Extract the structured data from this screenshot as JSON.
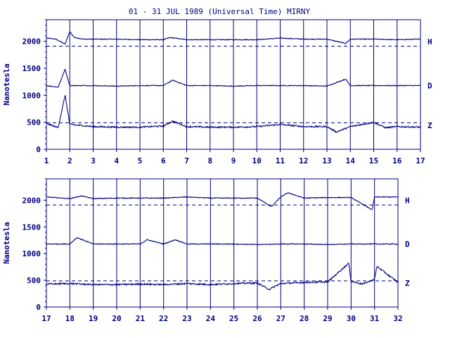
{
  "chart_data": {
    "title": "01 - 31 JUL 1989 (Universal Time) MIRNY",
    "ylabel": "Nanotesla",
    "colors": {
      "line": "#000080",
      "axis": "#000080",
      "text": "#000080"
    },
    "panels": [
      {
        "type": "line",
        "xlim": [
          1,
          17
        ],
        "ylim": [
          0,
          2400
        ],
        "x_ticks": [
          "1",
          "2",
          "3",
          "4",
          "5",
          "6",
          "7",
          "8",
          "9",
          "10",
          "11",
          "12",
          "13",
          "14",
          "15",
          "16",
          "17"
        ],
        "y_ticks": [
          "0",
          "500",
          "1000",
          "1500",
          "2000"
        ],
        "grid": "vertical day lines",
        "series": [
          {
            "name": "H",
            "baseline": 2050,
            "reference": 1910,
            "values": [
              [
                1,
                2060
              ],
              [
                1.4,
                2040
              ],
              [
                1.8,
                1950
              ],
              [
                2.0,
                2180
              ],
              [
                2.2,
                2070
              ],
              [
                2.6,
                2040
              ],
              [
                3,
                2040
              ],
              [
                4,
                2040
              ],
              [
                5,
                2030
              ],
              [
                6,
                2030
              ],
              [
                6.3,
                2070
              ],
              [
                7,
                2030
              ],
              [
                8,
                2030
              ],
              [
                9,
                2030
              ],
              [
                10,
                2030
              ],
              [
                11,
                2060
              ],
              [
                12,
                2040
              ],
              [
                13,
                2040
              ],
              [
                13.8,
                1960
              ],
              [
                14,
                2040
              ],
              [
                15,
                2040
              ],
              [
                16,
                2030
              ],
              [
                17,
                2040
              ]
            ]
          },
          {
            "name": "D",
            "baseline": 1180,
            "reference": null,
            "values": [
              [
                1,
                1180
              ],
              [
                1.5,
                1150
              ],
              [
                1.8,
                1480
              ],
              [
                2.0,
                1180
              ],
              [
                3,
                1180
              ],
              [
                4,
                1170
              ],
              [
                5,
                1180
              ],
              [
                6,
                1180
              ],
              [
                6.4,
                1280
              ],
              [
                7,
                1180
              ],
              [
                8,
                1180
              ],
              [
                9,
                1170
              ],
              [
                10,
                1180
              ],
              [
                11,
                1180
              ],
              [
                12,
                1180
              ],
              [
                13,
                1170
              ],
              [
                13.8,
                1300
              ],
              [
                14,
                1180
              ],
              [
                15,
                1180
              ],
              [
                16,
                1180
              ],
              [
                17,
                1180
              ]
            ]
          },
          {
            "name": "Z",
            "baseline": 420,
            "reference": 490,
            "values": [
              [
                1,
                480
              ],
              [
                1.5,
                400
              ],
              [
                1.8,
                1000
              ],
              [
                2.0,
                460
              ],
              [
                3,
                420
              ],
              [
                4,
                410
              ],
              [
                5,
                410
              ],
              [
                6,
                430
              ],
              [
                6.4,
                520
              ],
              [
                7,
                420
              ],
              [
                8,
                410
              ],
              [
                9,
                410
              ],
              [
                10,
                420
              ],
              [
                11,
                460
              ],
              [
                12,
                420
              ],
              [
                13,
                420
              ],
              [
                13.4,
                320
              ],
              [
                14,
                420
              ],
              [
                15,
                500
              ],
              [
                15.5,
                400
              ],
              [
                16,
                420
              ],
              [
                17,
                410
              ]
            ]
          }
        ]
      },
      {
        "type": "line",
        "xlim": [
          17,
          32
        ],
        "ylim": [
          0,
          2400
        ],
        "x_ticks": [
          "17",
          "18",
          "19",
          "20",
          "21",
          "22",
          "23",
          "24",
          "25",
          "26",
          "27",
          "28",
          "29",
          "30",
          "31",
          "32"
        ],
        "y_ticks": [
          "0",
          "500",
          "1000",
          "1500",
          "2000"
        ],
        "grid": "vertical day lines",
        "series": [
          {
            "name": "H",
            "baseline": 2050,
            "reference": 1910,
            "values": [
              [
                17,
                2060
              ],
              [
                18,
                2030
              ],
              [
                18.5,
                2080
              ],
              [
                19,
                2030
              ],
              [
                20,
                2040
              ],
              [
                21,
                2040
              ],
              [
                22,
                2040
              ],
              [
                23,
                2060
              ],
              [
                24,
                2040
              ],
              [
                25,
                2040
              ],
              [
                26,
                2040
              ],
              [
                26.6,
                1880
              ],
              [
                27,
                2060
              ],
              [
                27.3,
                2140
              ],
              [
                28,
                2040
              ],
              [
                29,
                2050
              ],
              [
                30,
                2050
              ],
              [
                30.9,
                1820
              ],
              [
                31,
                2060
              ],
              [
                32,
                2060
              ]
            ]
          },
          {
            "name": "D",
            "baseline": 1180,
            "reference": null,
            "values": [
              [
                17,
                1180
              ],
              [
                18,
                1180
              ],
              [
                18.3,
                1300
              ],
              [
                19,
                1180
              ],
              [
                20,
                1180
              ],
              [
                21,
                1180
              ],
              [
                21.3,
                1260
              ],
              [
                22,
                1180
              ],
              [
                22.5,
                1260
              ],
              [
                23,
                1180
              ],
              [
                24,
                1180
              ],
              [
                25,
                1180
              ],
              [
                26,
                1170
              ],
              [
                27,
                1180
              ],
              [
                28,
                1180
              ],
              [
                29,
                1170
              ],
              [
                30,
                1180
              ],
              [
                31,
                1180
              ],
              [
                32,
                1180
              ]
            ]
          },
          {
            "name": "Z",
            "baseline": 420,
            "reference": 490,
            "values": [
              [
                17,
                430
              ],
              [
                18,
                440
              ],
              [
                19,
                420
              ],
              [
                20,
                420
              ],
              [
                21,
                430
              ],
              [
                22,
                420
              ],
              [
                23,
                440
              ],
              [
                24,
                420
              ],
              [
                25,
                440
              ],
              [
                26,
                450
              ],
              [
                26.5,
                330
              ],
              [
                27,
                440
              ],
              [
                28,
                460
              ],
              [
                29,
                470
              ],
              [
                30,
                480
              ],
              [
                29.9,
                820
              ],
              [
                30.5,
                430
              ],
              [
                31,
                520
              ],
              [
                31.1,
                760
              ],
              [
                32,
                460
              ]
            ]
          }
        ]
      }
    ]
  }
}
